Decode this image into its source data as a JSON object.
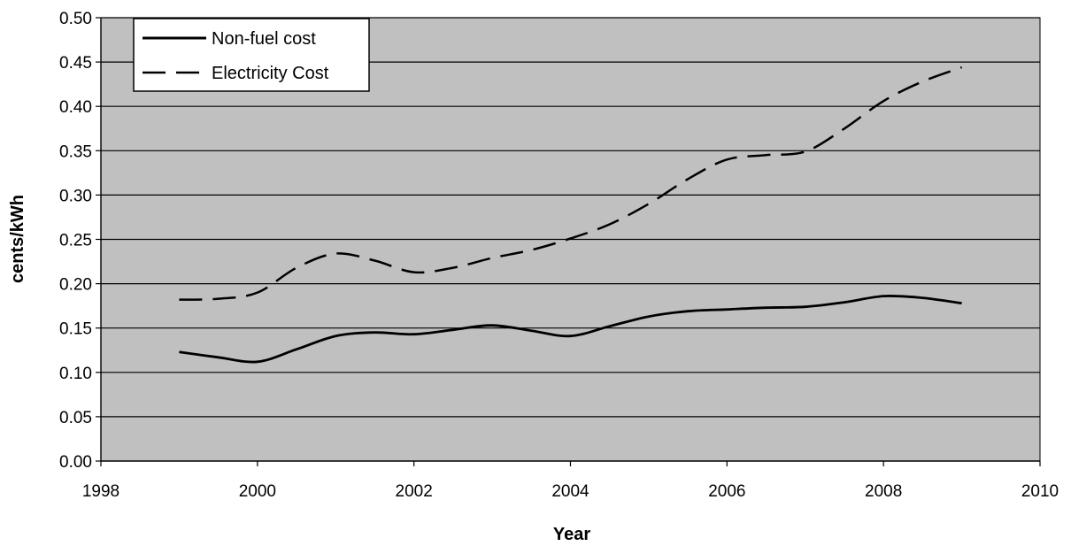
{
  "chart_data": {
    "type": "line",
    "title": "",
    "xlabel": "Year",
    "ylabel": "cents/kWh",
    "xlim": [
      1998,
      2010
    ],
    "ylim": [
      0,
      0.5
    ],
    "x_ticks": [
      1998,
      2000,
      2002,
      2004,
      2006,
      2008,
      2010
    ],
    "x_tick_labels": [
      "1998",
      "2000",
      "2002",
      "2004",
      "2006",
      "2008",
      "2010"
    ],
    "y_ticks": [
      0,
      0.05,
      0.1,
      0.15,
      0.2,
      0.25,
      0.3,
      0.35,
      0.4,
      0.45,
      0.5
    ],
    "y_tick_labels": [
      "0.00",
      "0.05",
      "0.10",
      "0.15",
      "0.20",
      "0.25",
      "0.30",
      "0.35",
      "0.40",
      "0.45",
      "0.50"
    ],
    "grid": "horizontal",
    "plot_background": "#c0c0c0",
    "legend_position": "top-left",
    "series": [
      {
        "name": "Non-fuel cost",
        "style": "solid",
        "color": "#000000",
        "x": [
          1999,
          1999.5,
          2000,
          2000.5,
          2001,
          2001.5,
          2002,
          2002.5,
          2003,
          2003.5,
          2004,
          2004.5,
          2005,
          2005.5,
          2006,
          2006.5,
          2007,
          2007.5,
          2008,
          2008.5,
          2009
        ],
        "values": [
          0.123,
          0.117,
          0.112,
          0.126,
          0.141,
          0.145,
          0.143,
          0.148,
          0.153,
          0.147,
          0.141,
          0.152,
          0.163,
          0.169,
          0.171,
          0.173,
          0.174,
          0.179,
          0.186,
          0.184,
          0.178
        ]
      },
      {
        "name": "Electricity Cost",
        "style": "dashed",
        "color": "#000000",
        "x": [
          1999,
          1999.5,
          2000,
          2000.5,
          2001,
          2001.5,
          2002,
          2002.5,
          2003,
          2003.5,
          2004,
          2004.5,
          2005,
          2005.5,
          2006,
          2006.5,
          2007,
          2007.5,
          2008,
          2008.5,
          2009
        ],
        "values": [
          0.182,
          0.183,
          0.19,
          0.218,
          0.234,
          0.226,
          0.213,
          0.218,
          0.229,
          0.238,
          0.251,
          0.267,
          0.29,
          0.318,
          0.34,
          0.345,
          0.349,
          0.375,
          0.406,
          0.428,
          0.444
        ]
      }
    ]
  }
}
